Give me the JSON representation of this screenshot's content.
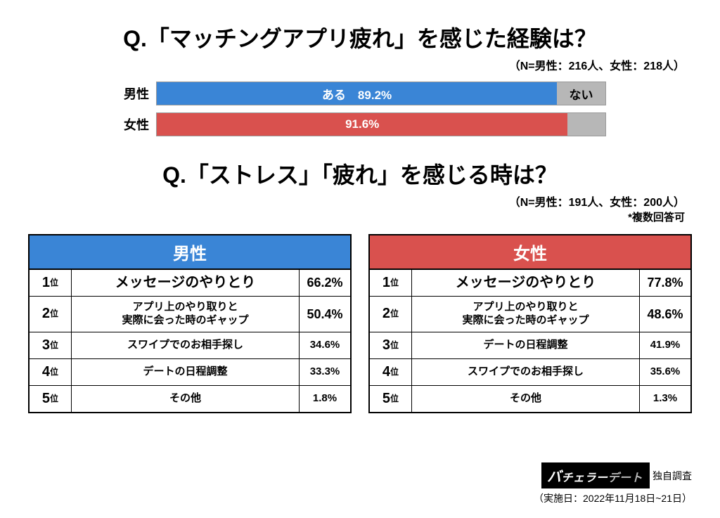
{
  "colors": {
    "male": "#3a85d6",
    "female": "#d9514e",
    "gray": "#b7b7b7",
    "border": "#000000",
    "bg": "#ffffff"
  },
  "q1": {
    "title": "Q.「マッチングアプリ疲れ」を感じた経験は？",
    "title_fontsize": 32,
    "n_note": "（N=男性：216人、女性：218人）",
    "n_fontsize": 16,
    "bars": [
      {
        "label": "男性",
        "seg1": {
          "text": "ある　89.2%",
          "pct": 89.2,
          "color": "#3a85d6"
        },
        "seg2": {
          "text": "ない",
          "pct": 10.8,
          "color": "#b7b7b7"
        }
      },
      {
        "label": "女性",
        "seg1": {
          "text": "91.6%",
          "pct": 91.6,
          "color": "#d9514e"
        },
        "seg2": {
          "text": "",
          "pct": 8.4,
          "color": "#b7b7b7"
        }
      }
    ]
  },
  "q2": {
    "title": "Q.「ストレス」「疲れ」を感じる時は？",
    "title_fontsize": 32,
    "n_note": "（N=男性：191人、女性：200人）",
    "footnote": "*複数回答可",
    "tables": [
      {
        "header": "男性",
        "header_color": "#3a85d6",
        "rows": [
          {
            "rank": "1",
            "item": "メッセージのやりとり",
            "pct": "66.2%",
            "item_fs": 20,
            "pct_fs": 18
          },
          {
            "rank": "2",
            "item": "アプリ上のやり取りと\n実際に会った時のギャップ",
            "pct": "50.4%",
            "item_fs": 15,
            "pct_fs": 18
          },
          {
            "rank": "3",
            "item": "スワイプでのお相手探し",
            "pct": "34.6%",
            "item_fs": 15,
            "pct_fs": 15
          },
          {
            "rank": "4",
            "item": "デートの日程調整",
            "pct": "33.3%",
            "item_fs": 15,
            "pct_fs": 15
          },
          {
            "rank": "5",
            "item": "その他",
            "pct": "1.8%",
            "item_fs": 15,
            "pct_fs": 15
          }
        ]
      },
      {
        "header": "女性",
        "header_color": "#d9514e",
        "rows": [
          {
            "rank": "1",
            "item": "メッセージのやりとり",
            "pct": "77.8%",
            "item_fs": 20,
            "pct_fs": 18
          },
          {
            "rank": "2",
            "item": "アプリ上のやり取りと\n実際に会った時のギャップ",
            "pct": "48.6%",
            "item_fs": 15,
            "pct_fs": 18
          },
          {
            "rank": "3",
            "item": "デートの日程調整",
            "pct": "41.9%",
            "item_fs": 15,
            "pct_fs": 15
          },
          {
            "rank": "4",
            "item": "スワイプでのお相手探し",
            "pct": "35.6%",
            "item_fs": 15,
            "pct_fs": 15
          },
          {
            "rank": "5",
            "item": "その他",
            "pct": "1.3%",
            "item_fs": 15,
            "pct_fs": 15
          }
        ]
      }
    ]
  },
  "credit": {
    "logo_prefix": "バ",
    "logo_mid": "チェラー",
    "logo_suffix": "デート",
    "source": "独自調査",
    "date": "（実施日：2022年11月18日~21日）"
  }
}
